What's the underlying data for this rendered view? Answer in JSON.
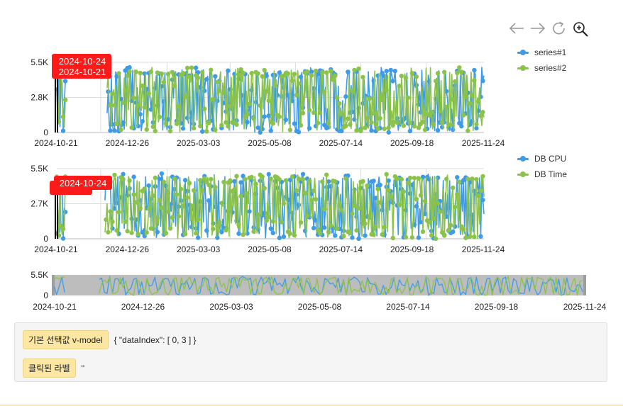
{
  "toolbar": {
    "icons": [
      "arrow-left-icon",
      "arrow-right-icon",
      "refresh-icon",
      "zoom-in-icon"
    ]
  },
  "colors": {
    "series1": "#3d9be9",
    "series2": "#8bc34a",
    "marker": "#ff1a1a",
    "grid": "#dddddd",
    "axis": "#888888"
  },
  "chart_data": [
    {
      "type": "line",
      "x_range": [
        "2024-10-21",
        "2025-11-24"
      ],
      "x_ticks": [
        "2024-10-21",
        "2024-12-26",
        "2025-03-03",
        "2025-05-08",
        "2025-07-14",
        "2025-09-18",
        "2025-11-24"
      ],
      "y_ticks": [
        "0",
        "2.8K",
        "5.5K"
      ],
      "ylim": [
        0,
        5500
      ],
      "legend_position": "right",
      "series": [
        {
          "name": "series#1"
        },
        {
          "name": "series#2"
        }
      ],
      "marker_labels": [
        "2024-10-21",
        "2024-10-24"
      ]
    },
    {
      "type": "line",
      "x_range": [
        "2024-10-21",
        "2025-11-24"
      ],
      "x_ticks": [
        "2024-10-21",
        "2024-12-26",
        "2025-03-03",
        "2025-05-08",
        "2025-07-14",
        "2025-09-18",
        "2025-11-24"
      ],
      "y_ticks": [
        "0",
        "2.7K",
        "5.5K"
      ],
      "ylim": [
        0,
        5500
      ],
      "legend_position": "right",
      "series": [
        {
          "name": "DB CPU"
        },
        {
          "name": "DB Time"
        }
      ],
      "marker_labels": [
        "2024-10-24"
      ]
    },
    {
      "type": "line",
      "x_range": [
        "2024-10-21",
        "2025-11-24"
      ],
      "x_ticks": [
        "2024-10-21",
        "2024-12-26",
        "2025-03-03",
        "2025-05-08",
        "2025-07-14",
        "2025-09-18",
        "2025-11-24"
      ],
      "y_ticks": [
        "0",
        "5.5K"
      ],
      "ylim": [
        0,
        5500
      ]
    }
  ],
  "info": {
    "selected_label": "기본 선택값 v-model",
    "selected_value": "{ \"dataIndex\": [ 0, 3 ] }",
    "clicked_label": "클릭된 라벨",
    "clicked_value": "''"
  }
}
